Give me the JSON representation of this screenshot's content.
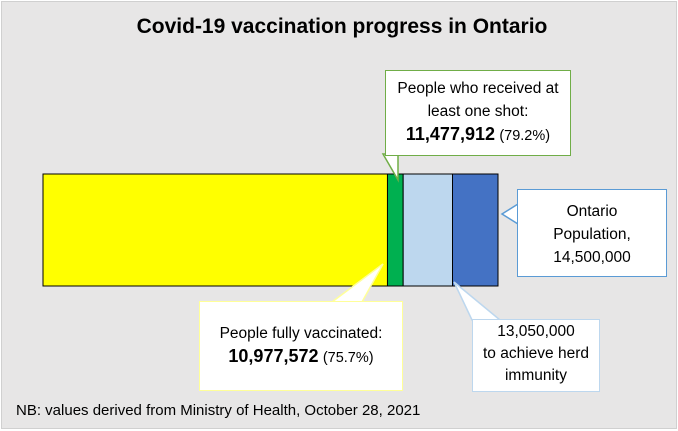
{
  "chart_data": {
    "type": "bar",
    "orientation": "horizontal-stacked",
    "title": "Covid-19 vaccination progress in Ontario",
    "axis_max": 14500000,
    "segments": [
      {
        "name": "People fully vaccinated",
        "value": 10977572,
        "color": "#ffff00"
      },
      {
        "name": "People who received at least one shot",
        "value": 11477912,
        "color": "#00b050"
      },
      {
        "name": "to achieve herd immunity",
        "value": 13050000,
        "color": "#bdd7ee"
      },
      {
        "name": "Ontario Population",
        "value": 14500000,
        "color": "#4472c4"
      }
    ]
  },
  "callouts": {
    "one_shot": {
      "label": "People who received at least one shot:",
      "value": "11,477,912",
      "pct": "(79.2%)"
    },
    "population": {
      "label": "Ontario Population,",
      "value": "14,500,000"
    },
    "fully": {
      "label": "People fully vaccinated:",
      "value": "10,977,572",
      "pct": "(75.7%)"
    },
    "herd": {
      "value": "13,050,000",
      "label": "to achieve herd immunity"
    }
  },
  "note": "NB: values derived from Ministry of Health, October 28, 2021"
}
